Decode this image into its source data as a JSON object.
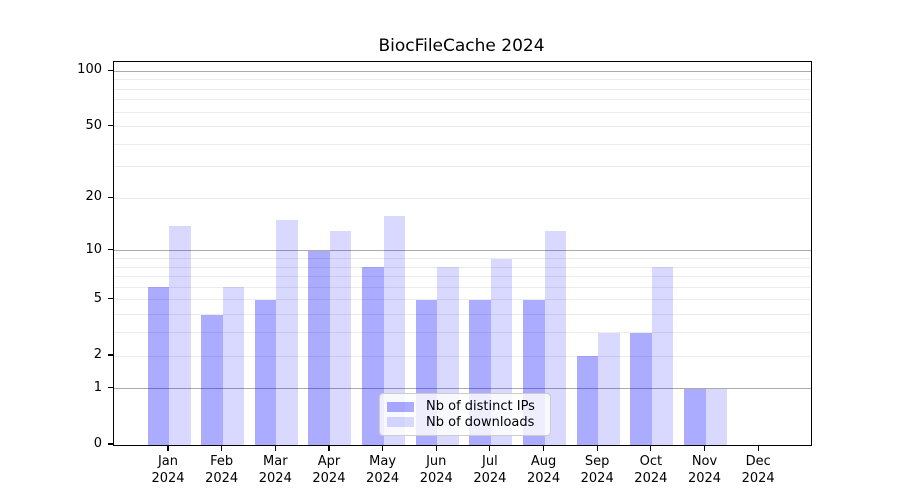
{
  "title": "BiocFileCache 2024",
  "chart_data": {
    "type": "bar",
    "title": "BiocFileCache 2024",
    "categories": [
      "Jan",
      "Feb",
      "Mar",
      "Apr",
      "May",
      "Jun",
      "Jul",
      "Aug",
      "Sep",
      "Oct",
      "Nov",
      "Dec"
    ],
    "category_year": "2024",
    "series": [
      {
        "name": "Nb of distinct IPs",
        "color": "rgba(0,0,255,0.33)",
        "values": [
          6,
          4,
          5,
          10,
          8,
          5,
          5,
          5,
          2,
          3,
          1,
          0
        ]
      },
      {
        "name": "Nb of downloads",
        "color": "rgba(0,0,255,0.15)",
        "values": [
          14,
          6,
          15,
          13,
          16,
          8,
          9,
          13,
          3,
          8,
          1,
          0
        ]
      }
    ],
    "yscale": "log1p",
    "ylim": [
      0,
      112
    ],
    "y_ticks": [
      0,
      1,
      2,
      5,
      10,
      20,
      50,
      100
    ],
    "y_tick_labels": [
      "0",
      "1",
      "2",
      "5",
      "10",
      "20",
      "50",
      "100"
    ],
    "grid": true,
    "grid_major": [
      1,
      10,
      100
    ],
    "grid_minor": [
      2,
      3,
      4,
      5,
      6,
      7,
      8,
      9,
      20,
      30,
      40,
      50,
      60,
      70,
      80,
      90
    ],
    "xlabel": "",
    "ylabel": "",
    "legend_position": "lower center"
  },
  "legend": {
    "items": [
      {
        "label": "Nb of distinct IPs",
        "swatch": "rgba(0,0,255,0.33)"
      },
      {
        "label": "Nb of downloads",
        "swatch": "rgba(0,0,255,0.15)"
      }
    ]
  },
  "colors": {
    "background": "#ffffff",
    "text": "#000000",
    "axis": "#000000",
    "grid_major": "#ababab",
    "grid_minor": "#ececec",
    "legend_bg": "rgba(255,255,255,0.8)",
    "legend_border": "#cccccc"
  }
}
